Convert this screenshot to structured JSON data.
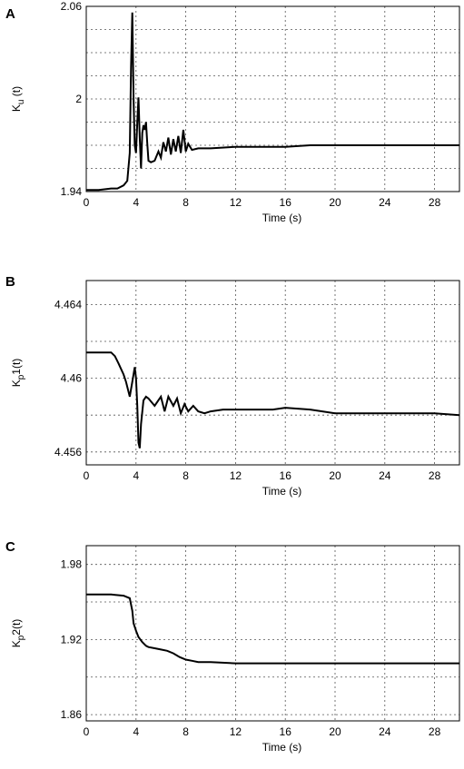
{
  "chart_data": [
    {
      "type": "line",
      "panel": "A",
      "title": "",
      "xlabel": "Time (s)",
      "ylabel_main": "K",
      "ylabel_sub": "u",
      "ylabel_rest": " (t)",
      "xlim": [
        0,
        30
      ],
      "ylim": [
        1.94,
        2.06
      ],
      "xticks": [
        0,
        4,
        8,
        12,
        16,
        20,
        24,
        28
      ],
      "yticks": [
        1.94,
        2,
        2.06
      ],
      "ytick_labels": [
        "1.94",
        "2",
        "2.06"
      ],
      "ygrid": [
        1.955,
        1.97,
        1.985,
        2.0,
        2.015,
        2.03,
        2.045
      ],
      "grid": true,
      "series": [
        {
          "x": [
            0,
            1,
            2,
            2.5,
            3,
            3.3,
            3.5,
            3.6,
            3.7,
            3.8,
            3.9,
            4.0,
            4.1,
            4.2,
            4.3,
            4.4,
            4.5,
            4.6,
            4.7,
            4.8,
            4.9,
            5.0,
            5.2,
            5.5,
            5.8,
            6.0,
            6.2,
            6.4,
            6.6,
            6.8,
            7.0,
            7.2,
            7.4,
            7.6,
            7.8,
            8.0,
            8.2,
            8.5,
            9.0,
            10,
            12,
            14,
            16,
            18,
            20,
            24,
            28,
            30
          ],
          "y": [
            1.941,
            1.941,
            1.942,
            1.942,
            1.944,
            1.947,
            1.965,
            2.02,
            2.056,
            2.0,
            1.97,
            1.965,
            1.985,
            2.001,
            1.975,
            1.955,
            1.978,
            1.983,
            1.98,
            1.985,
            1.972,
            1.96,
            1.959,
            1.96,
            1.966,
            1.962,
            1.972,
            1.966,
            1.975,
            1.964,
            1.974,
            1.966,
            1.976,
            1.965,
            1.98,
            1.966,
            1.971,
            1.967,
            1.968,
            1.968,
            1.969,
            1.969,
            1.969,
            1.97,
            1.97,
            1.97,
            1.97,
            1.97
          ]
        }
      ]
    },
    {
      "type": "line",
      "panel": "B",
      "title": "",
      "xlabel": "Time (s)",
      "ylabel_main": "K",
      "ylabel_sub": "p",
      "ylabel_rest": "1(t)",
      "xlim": [
        0,
        30
      ],
      "ylim": [
        4.4553,
        4.4653
      ],
      "xticks": [
        0,
        4,
        8,
        12,
        16,
        20,
        24,
        28
      ],
      "yticks": [
        4.456,
        4.46,
        4.464
      ],
      "ytick_labels": [
        "4.456",
        "4.46",
        "4.464"
      ],
      "ygrid": [
        4.456,
        4.458,
        4.46,
        4.462,
        4.464
      ],
      "grid": true,
      "series": [
        {
          "x": [
            0,
            1,
            2,
            2.3,
            2.6,
            3.0,
            3.2,
            3.5,
            3.7,
            3.9,
            4.0,
            4.1,
            4.2,
            4.3,
            4.4,
            4.6,
            4.8,
            5.0,
            5.5,
            6.0,
            6.3,
            6.6,
            7.0,
            7.3,
            7.6,
            7.9,
            8.2,
            8.6,
            9.0,
            9.5,
            10,
            11,
            12,
            13,
            14,
            15,
            16,
            18,
            20,
            22,
            24,
            26,
            28,
            30
          ],
          "y": [
            4.4614,
            4.4614,
            4.4614,
            4.4612,
            4.4608,
            4.4602,
            4.4598,
            4.459,
            4.4598,
            4.4606,
            4.46,
            4.4585,
            4.4565,
            4.4562,
            4.4575,
            4.4588,
            4.459,
            4.4589,
            4.4585,
            4.459,
            4.4582,
            4.459,
            4.4585,
            4.4589,
            4.4581,
            4.4586,
            4.4582,
            4.4585,
            4.4582,
            4.4581,
            4.4582,
            4.4583,
            4.4583,
            4.4583,
            4.4583,
            4.4583,
            4.4584,
            4.4583,
            4.4581,
            4.4581,
            4.4581,
            4.4581,
            4.4581,
            4.458
          ]
        }
      ]
    },
    {
      "type": "line",
      "panel": "C",
      "title": "",
      "xlabel": "Time (s)",
      "ylabel_main": "K",
      "ylabel_sub": "p",
      "ylabel_rest": "2(t)",
      "xlim": [
        0,
        30
      ],
      "ylim": [
        1.855,
        1.995
      ],
      "xticks": [
        0,
        4,
        8,
        12,
        16,
        20,
        24,
        28
      ],
      "yticks": [
        1.86,
        1.92,
        1.98
      ],
      "ytick_labels": [
        "1.86",
        "1.92",
        "1.98"
      ],
      "ygrid": [
        1.86,
        1.89,
        1.92,
        1.95,
        1.98
      ],
      "grid": true,
      "series": [
        {
          "x": [
            0,
            1,
            2,
            3,
            3.5,
            3.7,
            3.8,
            4.0,
            4.2,
            4.5,
            4.8,
            5.0,
            5.5,
            6.0,
            6.5,
            7.0,
            7.5,
            8.0,
            8.5,
            9.0,
            10,
            12,
            14,
            16,
            20,
            24,
            28,
            30
          ],
          "y": [
            1.956,
            1.956,
            1.956,
            1.955,
            1.953,
            1.943,
            1.933,
            1.927,
            1.922,
            1.918,
            1.915,
            1.914,
            1.913,
            1.912,
            1.911,
            1.909,
            1.906,
            1.904,
            1.903,
            1.902,
            1.902,
            1.901,
            1.901,
            1.901,
            1.901,
            1.901,
            1.901,
            1.901
          ]
        }
      ]
    }
  ]
}
